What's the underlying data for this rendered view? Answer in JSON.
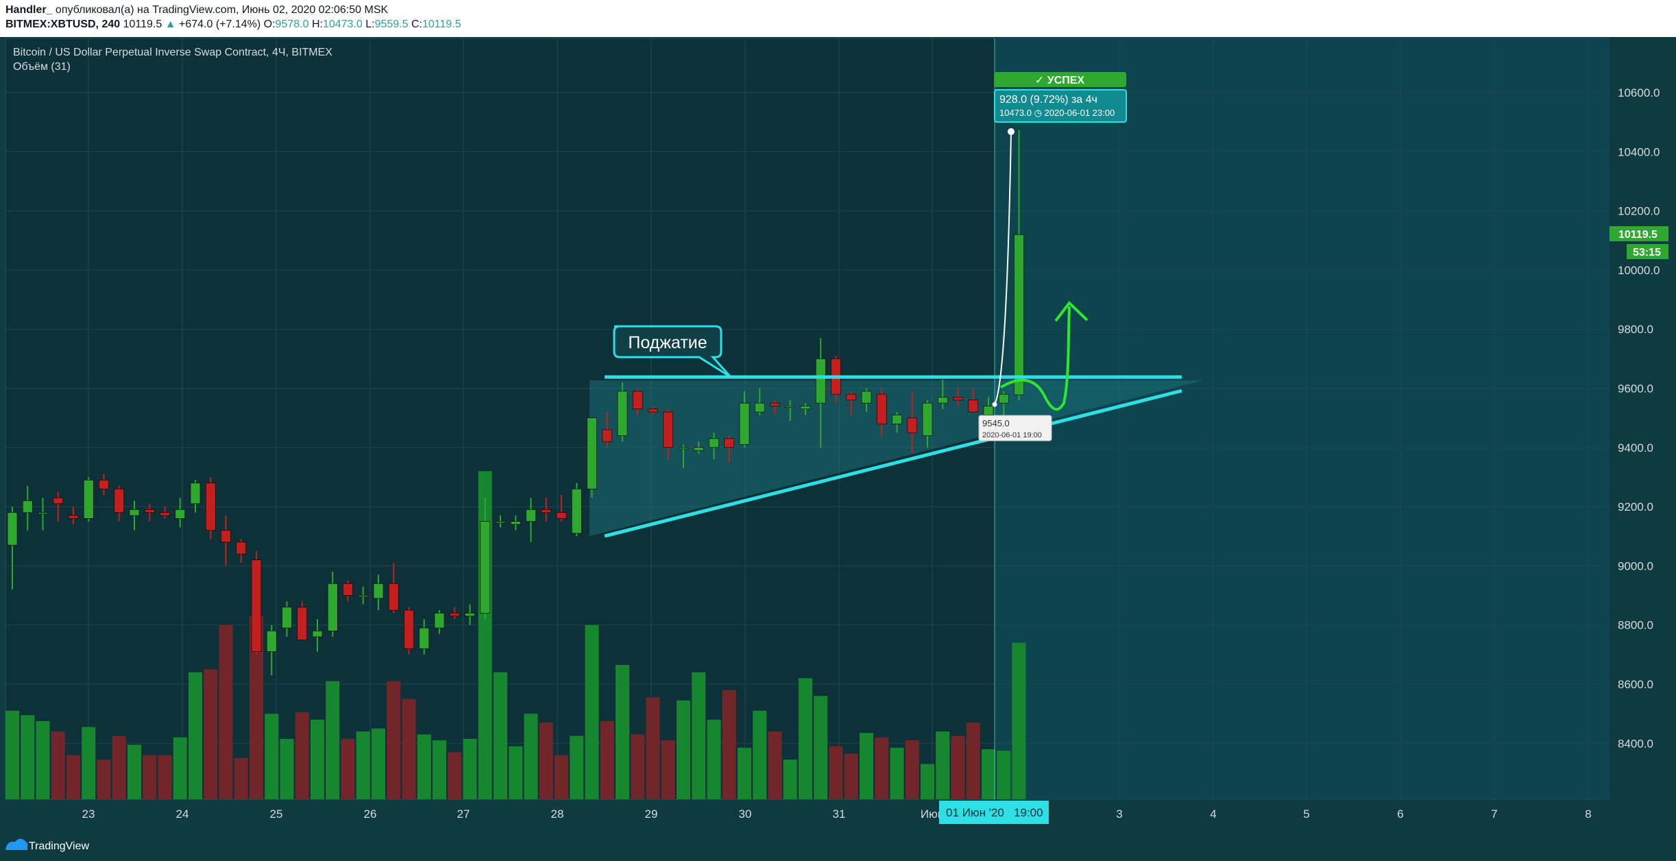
{
  "header": {
    "author": "Handler_",
    "published": "опубликовал(а) на TradingView.com, Июнь 02, 2020 02:06:50 MSK",
    "symbol": "BITMEX:XBTUSD, 240",
    "last": "10119.5",
    "change": "+674.0 (+7.14%)",
    "o_label": "O:",
    "o": "9578.0",
    "h_label": "H:",
    "h": "10473.0",
    "l_label": "L:",
    "l": "9559.5",
    "c_label": "C:",
    "c": "10119.5"
  },
  "legend": {
    "instrument": "Bitcoin / US Dollar Perpetual Inverse Swap Contract, 4Ч, BITMEX",
    "volume": "Объём (31)"
  },
  "price_axis": {
    "labels": [
      "10600.0",
      "10400.0",
      "10200.0",
      "10000.0",
      "9800.0",
      "9600.0",
      "9400.0",
      "9200.0",
      "9000.0",
      "8800.0",
      "8600.0",
      "8400.0"
    ],
    "last_price": "10119.5",
    "countdown": "53:15"
  },
  "time_axis": {
    "labels": [
      "23",
      "24",
      "25",
      "26",
      "27",
      "28",
      "29",
      "30",
      "31",
      "Июн",
      "3",
      "4",
      "5",
      "6",
      "7",
      "8"
    ],
    "cursor_label": "01 Июн '20   19:00"
  },
  "annotations": {
    "callout": "Поджатие",
    "success": "✓ УСПЕХ",
    "measure_main": "928.0 (9.72%) за 4ч",
    "measure_sub": "10473.0 ◷ 2020-06-01  23:00",
    "point_value": "9545.0",
    "point_date": "2020-06-01 19:00"
  },
  "footer": {
    "brand": "TradingView"
  },
  "colors": {
    "up": "#2ea82e",
    "down": "#c41f1f",
    "accent": "#2de0e6",
    "background": "#0f3a40"
  },
  "chart_data": {
    "type": "candlestick",
    "timeframe": "4h",
    "candles": [
      [
        9070,
        9200,
        8920,
        9180
      ],
      [
        9180,
        9270,
        9120,
        9220
      ],
      [
        9180,
        9230,
        9120,
        9180
      ],
      [
        9230,
        9250,
        9150,
        9210
      ],
      [
        9170,
        9200,
        9140,
        9160
      ],
      [
        9160,
        9300,
        9150,
        9290
      ],
      [
        9290,
        9310,
        9240,
        9260
      ],
      [
        9260,
        9270,
        9150,
        9180
      ],
      [
        9170,
        9220,
        9120,
        9190
      ],
      [
        9190,
        9210,
        9150,
        9180
      ],
      [
        9180,
        9200,
        9160,
        9170
      ],
      [
        9160,
        9230,
        9130,
        9190
      ],
      [
        9210,
        9290,
        9180,
        9280
      ],
      [
        9280,
        9300,
        9090,
        9120
      ],
      [
        9120,
        9170,
        9000,
        9080
      ],
      [
        9080,
        9090,
        9010,
        9040
      ],
      [
        9020,
        9050,
        8700,
        8710
      ],
      [
        8710,
        8800,
        8630,
        8780
      ],
      [
        8790,
        8880,
        8760,
        8860
      ],
      [
        8860,
        8880,
        8760,
        8750
      ],
      [
        8760,
        8820,
        8710,
        8780
      ],
      [
        8780,
        8980,
        8760,
        8940
      ],
      [
        8940,
        8950,
        8880,
        8900
      ],
      [
        8900,
        8930,
        8870,
        8900
      ],
      [
        8890,
        8970,
        8850,
        8940
      ],
      [
        8940,
        9010,
        8840,
        8850
      ],
      [
        8850,
        8860,
        8700,
        8720
      ],
      [
        8720,
        8820,
        8700,
        8790
      ],
      [
        8790,
        8850,
        8770,
        8840
      ],
      [
        8840,
        8860,
        8820,
        8830
      ],
      [
        8830,
        8870,
        8800,
        8840
      ],
      [
        8840,
        9230,
        8820,
        9150
      ],
      [
        9150,
        9170,
        9130,
        9150
      ],
      [
        9140,
        9170,
        9120,
        9150
      ],
      [
        9150,
        9230,
        9080,
        9190
      ],
      [
        9190,
        9230,
        9150,
        9180
      ],
      [
        9180,
        9240,
        9150,
        9160
      ],
      [
        9110,
        9280,
        9100,
        9260
      ],
      [
        9260,
        9500,
        9230,
        9500
      ],
      [
        9460,
        9520,
        9400,
        9420
      ],
      [
        9440,
        9620,
        9420,
        9590
      ],
      [
        9590,
        9600,
        9510,
        9530
      ],
      [
        9530,
        9540,
        9510,
        9520
      ],
      [
        9520,
        9530,
        9360,
        9400
      ],
      [
        9400,
        9410,
        9330,
        9400
      ],
      [
        9390,
        9420,
        9380,
        9400
      ],
      [
        9400,
        9450,
        9360,
        9430
      ],
      [
        9430,
        9440,
        9350,
        9400
      ],
      [
        9410,
        9590,
        9400,
        9550
      ],
      [
        9520,
        9600,
        9510,
        9550
      ],
      [
        9550,
        9560,
        9510,
        9540
      ],
      [
        9540,
        9560,
        9490,
        9540
      ],
      [
        9530,
        9550,
        9510,
        9540
      ],
      [
        9550,
        9770,
        9400,
        9700
      ],
      [
        9700,
        9710,
        9550,
        9580
      ],
      [
        9580,
        9590,
        9510,
        9560
      ],
      [
        9550,
        9600,
        9520,
        9590
      ],
      [
        9580,
        9600,
        9440,
        9480
      ],
      [
        9480,
        9520,
        9450,
        9510
      ],
      [
        9500,
        9590,
        9380,
        9450
      ],
      [
        9440,
        9560,
        9400,
        9550
      ],
      [
        9550,
        9630,
        9530,
        9570
      ],
      [
        9570,
        9600,
        9540,
        9560
      ],
      [
        9560,
        9600,
        9520,
        9520
      ],
      [
        9510,
        9570,
        9450,
        9540
      ],
      [
        9550,
        9590,
        9470,
        9580
      ],
      [
        9578,
        10473,
        9559.5,
        10119.5
      ]
    ],
    "candle_fields": [
      "open",
      "high",
      "low",
      "close"
    ],
    "volume": [
      8510,
      8495,
      8475,
      8440,
      8360,
      8455,
      8345,
      8425,
      8395,
      8360,
      8360,
      8420,
      8640,
      8650,
      8800,
      8350,
      8830,
      8500,
      8415,
      8505,
      8480,
      8610,
      8415,
      8440,
      8450,
      8610,
      8550,
      8430,
      8410,
      8370,
      8415,
      9320,
      8640,
      8390,
      8500,
      8470,
      8360,
      8425,
      8800,
      8475,
      8665,
      8430,
      8555,
      8410,
      8545,
      8640,
      8480,
      8580,
      8385,
      8510,
      8440,
      8345,
      8620,
      8560,
      8390,
      8365,
      8435,
      8420,
      8385,
      8410,
      8330,
      8440,
      8425,
      8470,
      8380,
      8375,
      8740
    ],
    "x_ticks": [
      "23",
      "24",
      "25",
      "26",
      "27",
      "28",
      "29",
      "30",
      "31",
      "Июн",
      "3",
      "4",
      "5",
      "6",
      "7",
      "8"
    ],
    "y_ticks": [
      10600,
      10400,
      10200,
      10000,
      9800,
      9600,
      9400,
      9200,
      9000,
      8800,
      8600,
      8400
    ],
    "ylim": [
      8210,
      10800
    ],
    "resistance": 9640,
    "support_line": {
      "from": [
        9100
      ],
      "to": [
        9590
      ]
    },
    "measure": {
      "from": 9545.0,
      "to": 10473.0,
      "change": 928.0,
      "change_pct": 9.72
    }
  }
}
